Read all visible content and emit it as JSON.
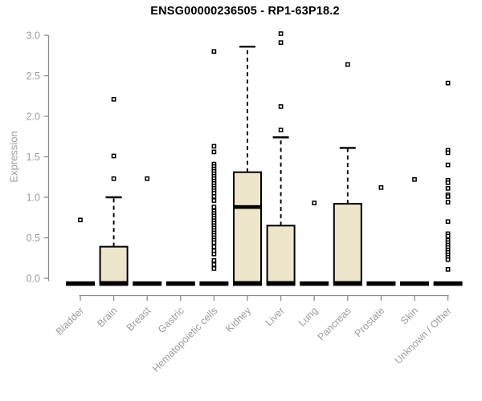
{
  "page": {
    "background": "#ffffff"
  },
  "chart_data": {
    "type": "boxplot",
    "title": "ENSG00000236505 - RP1-63P18.2",
    "ylabel": "Expression",
    "xlabel": "",
    "ylim": [
      0,
      3.05
    ],
    "grid": false,
    "legend": "none",
    "ytick_labels": [
      "0.0",
      "0.5",
      "1.0",
      "1.5",
      "2.0",
      "2.5",
      "3.0"
    ],
    "ytick_values": [
      0,
      0.5,
      1.0,
      1.5,
      2.0,
      2.5,
      3.0
    ],
    "colors": {
      "box_fill": "#EDE6CB",
      "box_border": "#000000",
      "median": "#000000",
      "whisker": "#000000",
      "outlier": "#000000",
      "axis_line": "#8c8c8c",
      "tick_text": "#9c9c9c",
      "title_text": "#000000"
    },
    "categories": [
      "Bladder",
      "Brain",
      "Breast",
      "Gastric",
      "Hematopoietic cells",
      "Kidney",
      "Liver",
      "Lung",
      "Pancreas",
      "Prostate",
      "Skin",
      "Unknown / Other"
    ],
    "series": [
      {
        "label": "Bladder",
        "q1": 0,
        "median": 0,
        "q3": 0,
        "whisker_low": 0,
        "whisker_high": 0,
        "outliers": [
          0.72
        ]
      },
      {
        "label": "Brain",
        "q1": 0,
        "median": 0,
        "q3": 0.39,
        "whisker_low": 0,
        "whisker_high": 1.0,
        "outliers": [
          2.21,
          1.51,
          1.23
        ]
      },
      {
        "label": "Breast",
        "q1": 0,
        "median": 0,
        "q3": 0,
        "whisker_low": 0,
        "whisker_high": 0,
        "outliers": [
          1.23
        ]
      },
      {
        "label": "Gastric",
        "q1": 0,
        "median": 0,
        "q3": 0,
        "whisker_low": 0,
        "whisker_high": 0,
        "outliers": []
      },
      {
        "label": "Hematopoietic cells",
        "q1": 0,
        "median": 0,
        "q3": 0,
        "whisker_low": 0,
        "whisker_high": 0,
        "outliers": [
          2.8,
          1.63,
          1.56,
          1.41,
          1.38,
          1.35,
          1.32,
          1.29,
          1.26,
          1.23,
          1.2,
          1.17,
          1.14,
          1.11,
          1.08,
          1.05,
          1.01,
          0.96,
          0.88,
          0.83,
          0.8,
          0.77,
          0.74,
          0.71,
          0.68,
          0.65,
          0.62,
          0.59,
          0.56,
          0.53,
          0.5,
          0.47,
          0.44,
          0.39,
          0.34,
          0.3,
          0.22,
          0.17,
          0.12
        ]
      },
      {
        "label": "Kidney",
        "q1": 0,
        "median": 0.88,
        "q3": 1.31,
        "whisker_low": 0,
        "whisker_high": 2.86,
        "outliers": []
      },
      {
        "label": "Liver",
        "q1": 0,
        "median": 0,
        "q3": 0.65,
        "whisker_low": 0,
        "whisker_high": 1.74,
        "outliers": [
          3.02,
          2.91,
          2.12,
          1.83
        ]
      },
      {
        "label": "Lung",
        "q1": 0,
        "median": 0,
        "q3": 0,
        "whisker_low": 0,
        "whisker_high": 0,
        "outliers": [
          0.93
        ]
      },
      {
        "label": "Pancreas",
        "q1": 0,
        "median": 0,
        "q3": 0.92,
        "whisker_low": 0,
        "whisker_high": 1.61,
        "outliers": [
          2.64
        ]
      },
      {
        "label": "Prostate",
        "q1": 0,
        "median": 0,
        "q3": 0,
        "whisker_low": 0,
        "whisker_high": 0,
        "outliers": [
          1.12
        ]
      },
      {
        "label": "Skin",
        "q1": 0,
        "median": 0,
        "q3": 0,
        "whisker_low": 0,
        "whisker_high": 0,
        "outliers": [
          1.22
        ]
      },
      {
        "label": "Unknown / Other",
        "q1": 0,
        "median": 0,
        "q3": 0,
        "whisker_low": 0,
        "whisker_high": 0,
        "outliers": [
          2.41,
          1.58,
          1.55,
          1.4,
          1.21,
          1.18,
          1.11,
          1.03,
          1.01,
          0.94,
          0.7,
          0.55,
          0.52,
          0.47,
          0.44,
          0.41,
          0.38,
          0.35,
          0.32,
          0.29,
          0.26,
          0.23,
          0.11
        ]
      }
    ]
  }
}
